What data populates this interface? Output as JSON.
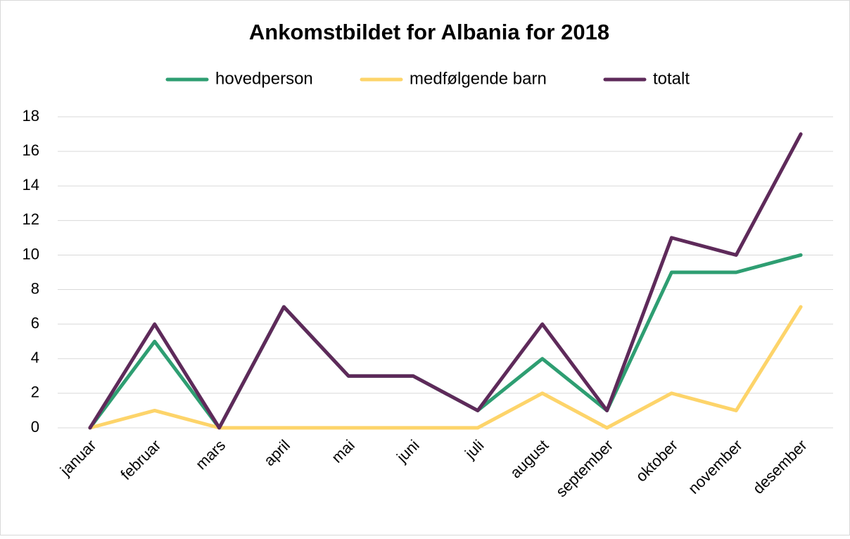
{
  "chart_data": {
    "type": "line",
    "title": "Ankomstbildet for Albania for 2018",
    "categories": [
      "januar",
      "februar",
      "mars",
      "april",
      "mai",
      "juni",
      "juli",
      "august",
      "september",
      "oktober",
      "november",
      "desember"
    ],
    "series": [
      {
        "name": "hovedperson",
        "color": "#2e9e72",
        "values": [
          0,
          5,
          0,
          7,
          3,
          3,
          1,
          4,
          1,
          9,
          9,
          10
        ]
      },
      {
        "name": "medfølgende barn",
        "color": "#fdd46a",
        "values": [
          0,
          1,
          0,
          0,
          0,
          0,
          0,
          2,
          0,
          2,
          1,
          7
        ]
      },
      {
        "name": "totalt",
        "color": "#5e2a5a",
        "values": [
          0,
          6,
          0,
          7,
          3,
          3,
          1,
          6,
          1,
          11,
          10,
          17
        ]
      }
    ],
    "ylim": [
      0,
      18
    ],
    "yticks": [
      0,
      2,
      4,
      6,
      8,
      10,
      12,
      14,
      16,
      18
    ],
    "grid": true,
    "legend": "top"
  }
}
